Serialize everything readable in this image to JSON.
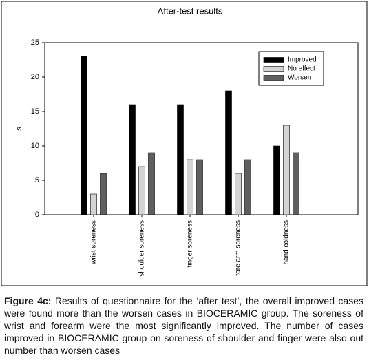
{
  "chart_data": {
    "type": "bar",
    "title": "After-test results",
    "y_label": "s",
    "categories": [
      "wrist soreness",
      "shoulder soreness",
      "finger soreness",
      "fore arm soreness",
      "hand coldness"
    ],
    "series": [
      {
        "name": "Improved",
        "color": "#000000",
        "values": [
          23,
          16,
          16,
          18,
          10
        ]
      },
      {
        "name": "No effect",
        "color": "#d4d4d4",
        "values": [
          3,
          7,
          8,
          6,
          13
        ]
      },
      {
        "name": "Worsen",
        "color": "#5f5f5f",
        "values": [
          6,
          9,
          8,
          8,
          9
        ]
      }
    ],
    "ylim": [
      0,
      25
    ],
    "yticks": [
      0,
      5,
      10,
      15,
      20,
      25
    ],
    "grid": false,
    "legend": "upper right"
  },
  "caption": {
    "label": "Figure 4c:",
    "text": "Results of questionnaire for the ‘after test’, the overall improved cases were found more than the worsen cases in BIOCERAMIC group. The soreness of wrist and forearm were the most significantly improved. The number of cases improved in BIOCERAMIC group on soreness of shoulder and finger were also out number than worsen cases"
  }
}
